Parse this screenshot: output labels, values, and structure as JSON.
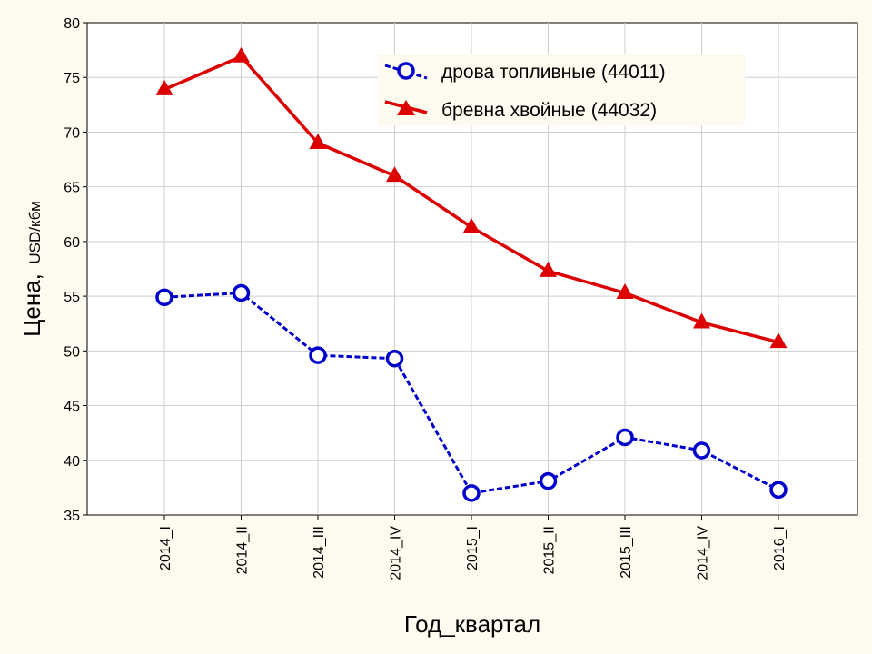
{
  "chart_data": {
    "type": "line",
    "title": "",
    "xlabel": "Год_квартал",
    "ylabel_main": "Цена,",
    "ylabel_unit": "USD/кбм",
    "categories": [
      "2014_I",
      "2014_II",
      "2014_III",
      "2014_IV",
      "2015_I",
      "2015_II",
      "2015_III",
      "2014_IV",
      "2016_I"
    ],
    "ylim": [
      35,
      80
    ],
    "yticks": [
      35,
      40,
      45,
      50,
      55,
      60,
      65,
      70,
      75,
      80
    ],
    "grid": true,
    "legend_position": "top-right",
    "series": [
      {
        "name": "дрова топливные (44011)",
        "color": "#0000cc",
        "line_style": "dashed",
        "marker": "circle",
        "values": [
          54.9,
          55.3,
          49.6,
          49.3,
          37.0,
          38.1,
          42.1,
          40.9,
          37.3
        ]
      },
      {
        "name": "бревна хвойные (44032)",
        "color": "#dd0000",
        "line_style": "solid",
        "marker": "triangle",
        "values": [
          73.9,
          76.9,
          69.0,
          66.0,
          61.3,
          57.3,
          55.3,
          52.6,
          50.8
        ]
      }
    ]
  }
}
